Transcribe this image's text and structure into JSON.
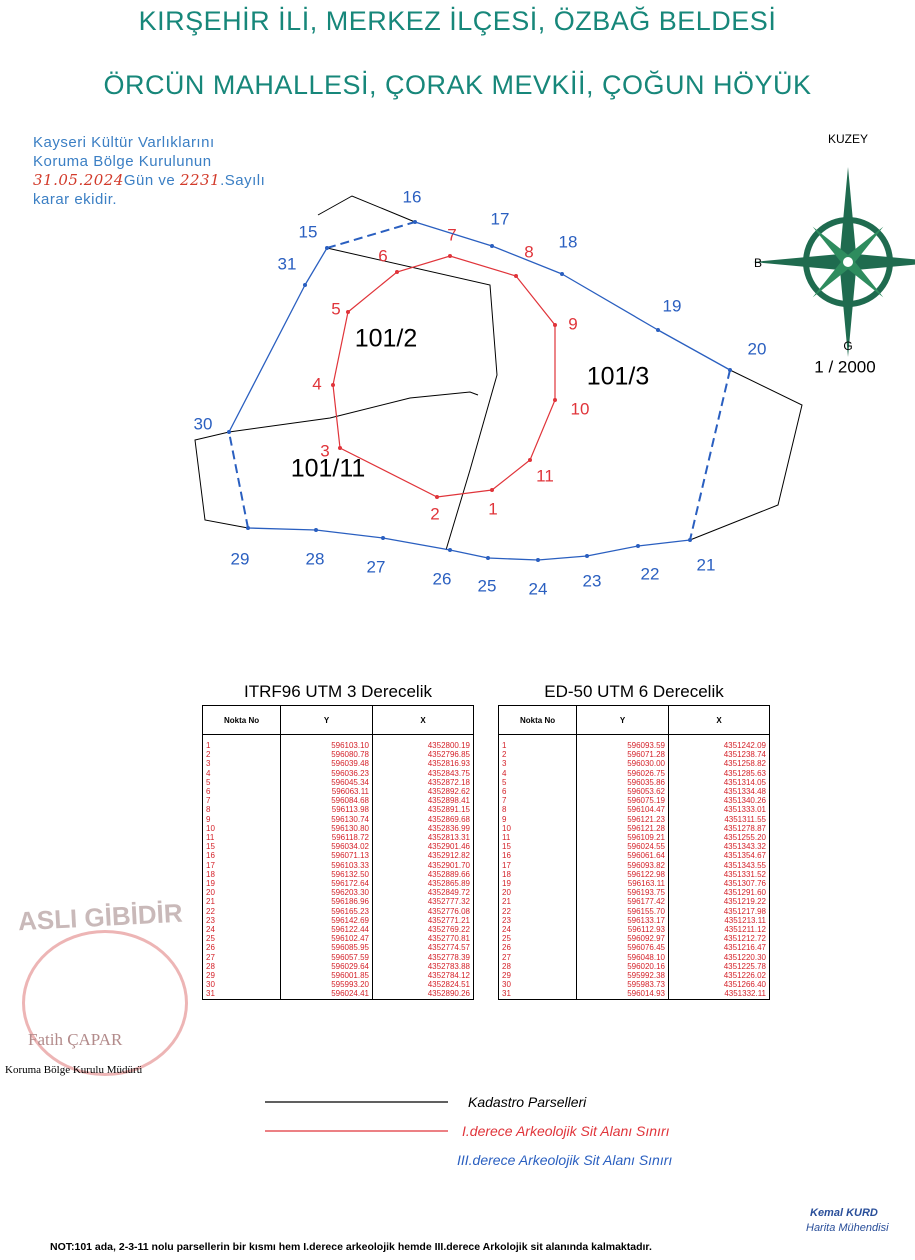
{
  "header": {
    "title": "KIRŞEHİR İLİ, MERKEZ İLÇESİ, ÖZBAĞ BELDESİ",
    "subtitle": "ÖRCÜN MAHALLESİ, ÇORAK MEVKİİ, ÇOĞUN HÖYÜK"
  },
  "stamp": {
    "line1": "Kayseri Kültür Varlıklarını",
    "line2": "Koruma Bölge Kurulunun",
    "date": "31.05.2024",
    "mid": "Gün ve",
    "number": "2231",
    "end": ".Sayılı",
    "line4": "karar ekidir."
  },
  "map": {
    "red_points": [
      "1",
      "2",
      "3",
      "4",
      "5",
      "6",
      "7",
      "8",
      "9",
      "10",
      "11"
    ],
    "blue_points": [
      "15",
      "16",
      "17",
      "18",
      "19",
      "20",
      "21",
      "22",
      "23",
      "24",
      "25",
      "26",
      "27",
      "28",
      "29",
      "30",
      "31"
    ],
    "parcels": [
      "101/2",
      "101/3",
      "101/11"
    ],
    "north": "KUZEY",
    "west": "B",
    "south": "G",
    "scale": "1 / 2000"
  },
  "tables": [
    {
      "title": "ITRF96 UTM 3 Derecelik",
      "columns": [
        "Nokta  No",
        "Y",
        "X"
      ],
      "rows": [
        [
          "1",
          "596103.10",
          "4352800.19"
        ],
        [
          "2",
          "596080.78",
          "4352796.85"
        ],
        [
          "3",
          "596039.48",
          "4352816.93"
        ],
        [
          "4",
          "596036.23",
          "4352843.75"
        ],
        [
          "5",
          "596045.34",
          "4352872.18"
        ],
        [
          "6",
          "596063.11",
          "4352892.62"
        ],
        [
          "7",
          "596084.68",
          "4352898.41"
        ],
        [
          "8",
          "596113.98",
          "4352891.15"
        ],
        [
          "9",
          "596130.74",
          "4352869.68"
        ],
        [
          "10",
          "596130.80",
          "4352836.99"
        ],
        [
          "11",
          "596118.72",
          "4352813.31"
        ],
        [
          "15",
          "596034.02",
          "4352901.46"
        ],
        [
          "16",
          "596071.13",
          "4352912.82"
        ],
        [
          "17",
          "596103.33",
          "4352901.70"
        ],
        [
          "18",
          "596132.50",
          "4352889.66"
        ],
        [
          "19",
          "596172.64",
          "4352865.89"
        ],
        [
          "20",
          "596203.30",
          "4352849.72"
        ],
        [
          "21",
          "596186.96",
          "4352777.32"
        ],
        [
          "22",
          "596165.23",
          "4352776.08"
        ],
        [
          "23",
          "596142.69",
          "4352771.21"
        ],
        [
          "24",
          "596122.44",
          "4352769.22"
        ],
        [
          "25",
          "596102.47",
          "4352770.81"
        ],
        [
          "26",
          "596085.95",
          "4352774.57"
        ],
        [
          "27",
          "596057.59",
          "4352778.39"
        ],
        [
          "28",
          "596029.64",
          "4352783.88"
        ],
        [
          "29",
          "596001.85",
          "4352784.12"
        ],
        [
          "30",
          "595993.20",
          "4352824.51"
        ],
        [
          "31",
          "596024.41",
          "4352890.26"
        ]
      ]
    },
    {
      "title": "ED-50 UTM 6 Derecelik",
      "columns": [
        "Nokta  No",
        "Y",
        "X"
      ],
      "rows": [
        [
          "1",
          "596093.59",
          "4351242.09"
        ],
        [
          "2",
          "596071.28",
          "4351238.74"
        ],
        [
          "3",
          "596030.00",
          "4351258.82"
        ],
        [
          "4",
          "596026.75",
          "4351285.63"
        ],
        [
          "5",
          "596035.86",
          "4351314.05"
        ],
        [
          "6",
          "596053.62",
          "4351334.48"
        ],
        [
          "7",
          "596075.19",
          "4351340.26"
        ],
        [
          "8",
          "596104.47",
          "4351333.01"
        ],
        [
          "9",
          "596121.23",
          "4351311.55"
        ],
        [
          "10",
          "596121.28",
          "4351278.87"
        ],
        [
          "11",
          "596109.21",
          "4351255.20"
        ],
        [
          "15",
          "596024.55",
          "4351343.32"
        ],
        [
          "16",
          "596061.64",
          "4351354.67"
        ],
        [
          "17",
          "596093.82",
          "4351343.55"
        ],
        [
          "18",
          "596122.98",
          "4351331.52"
        ],
        [
          "19",
          "596163.11",
          "4351307.76"
        ],
        [
          "20",
          "596193.75",
          "4351291.60"
        ],
        [
          "21",
          "596177.42",
          "4351219.22"
        ],
        [
          "22",
          "596155.70",
          "4351217.98"
        ],
        [
          "23",
          "596133.17",
          "4351213.11"
        ],
        [
          "24",
          "596112.93",
          "4351211.12"
        ],
        [
          "25",
          "596092.97",
          "4351212.72"
        ],
        [
          "26",
          "596076.45",
          "4351216.47"
        ],
        [
          "27",
          "596048.10",
          "4351220.30"
        ],
        [
          "28",
          "596020.16",
          "4351225.78"
        ],
        [
          "29",
          "595992.38",
          "4351226.02"
        ],
        [
          "30",
          "595983.73",
          "4351266.40"
        ],
        [
          "31",
          "596014.93",
          "4351332.11"
        ]
      ]
    }
  ],
  "legend": [
    "Kadastro Parselleri",
    "I.derece Arkeolojik Sit Alanı Sınırı",
    "III.derece Arkeolojik Sit Alanı Sınırı"
  ],
  "signatures": {
    "seal": "ASLI GİBİDİR",
    "left_name": "Fatih ÇAPAR",
    "left_title": "Koruma Bölge Kurulu Müdürü",
    "right_name": "Kemal KURD",
    "right_title": "Harita Mühendisi"
  },
  "note": "NOT:101 ada, 2-3-11 nolu parsellerin bir kısmı hem I.derece arkeolojik hemde III.derece Arkolojik sit alanında kalmaktadır."
}
